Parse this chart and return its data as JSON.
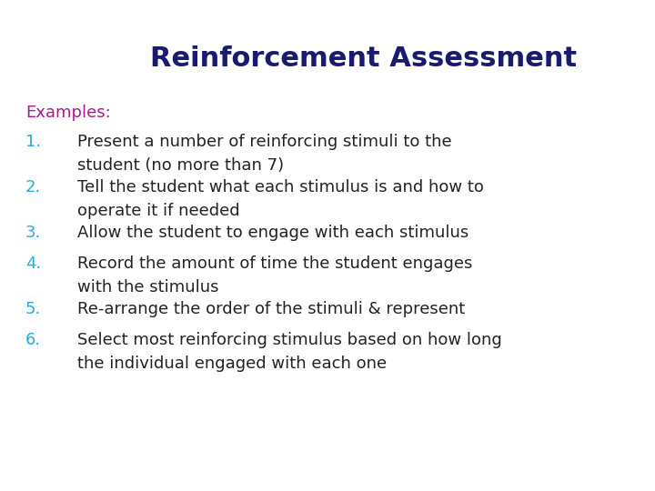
{
  "title": "Reinforcement Assessment",
  "title_color": "#1a1a6e",
  "title_fontsize": 22,
  "examples_label": "Examples:",
  "examples_color": "#aa1a8a",
  "examples_fontsize": 13,
  "number_color": "#29abe2",
  "text_color": "#222222",
  "body_fontsize": 13,
  "background_color": "#ffffff",
  "items": [
    {
      "num": "1.",
      "line1": "Present a number of reinforcing stimuli to the",
      "line2": "student (no more than 7)"
    },
    {
      "num": "2.",
      "line1": "Tell the student what each stimulus is and how to",
      "line2": "operate it if needed"
    },
    {
      "num": "3.",
      "line1": "Allow the student to engage with each stimulus",
      "line2": null
    },
    {
      "num": "4.",
      "line1": "Record the amount of time the student engages",
      "line2": "with the stimulus"
    },
    {
      "num": "5.",
      "line1": "Re-arrange the order of the stimuli & represent",
      "line2": null
    },
    {
      "num": "6.",
      "line1": "Select most reinforcing stimulus based on how long",
      "line2": "the individual engaged with each one"
    }
  ]
}
